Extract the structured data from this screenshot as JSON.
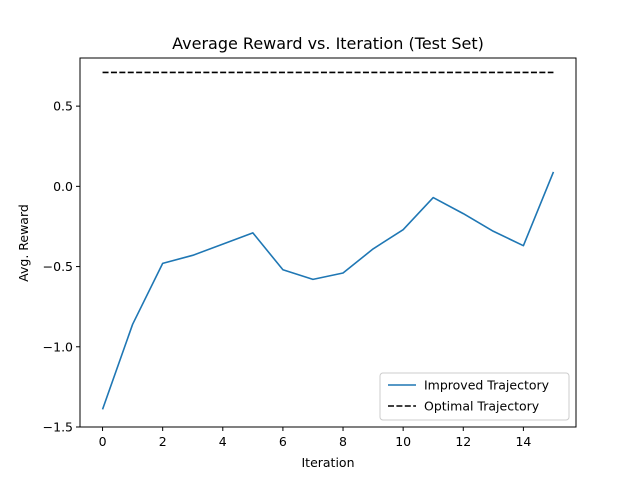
{
  "chart_data": {
    "type": "line",
    "title": "Average Reward vs. Iteration (Test Set)",
    "xlabel": "Iteration",
    "ylabel": "Avg. Reward",
    "xlim": [
      -0.75,
      15.75
    ],
    "ylim": [
      -1.5,
      0.8
    ],
    "xticks": [
      0,
      2,
      4,
      6,
      8,
      10,
      12,
      14
    ],
    "yticks": [
      -1.5,
      -1.0,
      -0.5,
      0.0,
      0.5
    ],
    "ytick_labels": [
      "−1.5",
      "−1.0",
      "−0.5",
      "0.0",
      "0.5"
    ],
    "grid": false,
    "legend_position": "bottom-right",
    "series": [
      {
        "name": "Improved Trajectory",
        "color": "#1f77b4",
        "style": "solid",
        "x": [
          0,
          1,
          2,
          3,
          4,
          5,
          6,
          7,
          8,
          9,
          10,
          11,
          12,
          13,
          14,
          15
        ],
        "y": [
          -1.39,
          -0.86,
          -0.48,
          -0.43,
          -0.36,
          -0.29,
          -0.52,
          -0.58,
          -0.54,
          -0.39,
          -0.27,
          -0.07,
          -0.17,
          -0.28,
          -0.37,
          0.09
        ]
      },
      {
        "name": "Optimal Trajectory",
        "color": "#000000",
        "style": "dashed",
        "x": [
          0,
          15
        ],
        "y": [
          0.71,
          0.71
        ]
      }
    ]
  }
}
